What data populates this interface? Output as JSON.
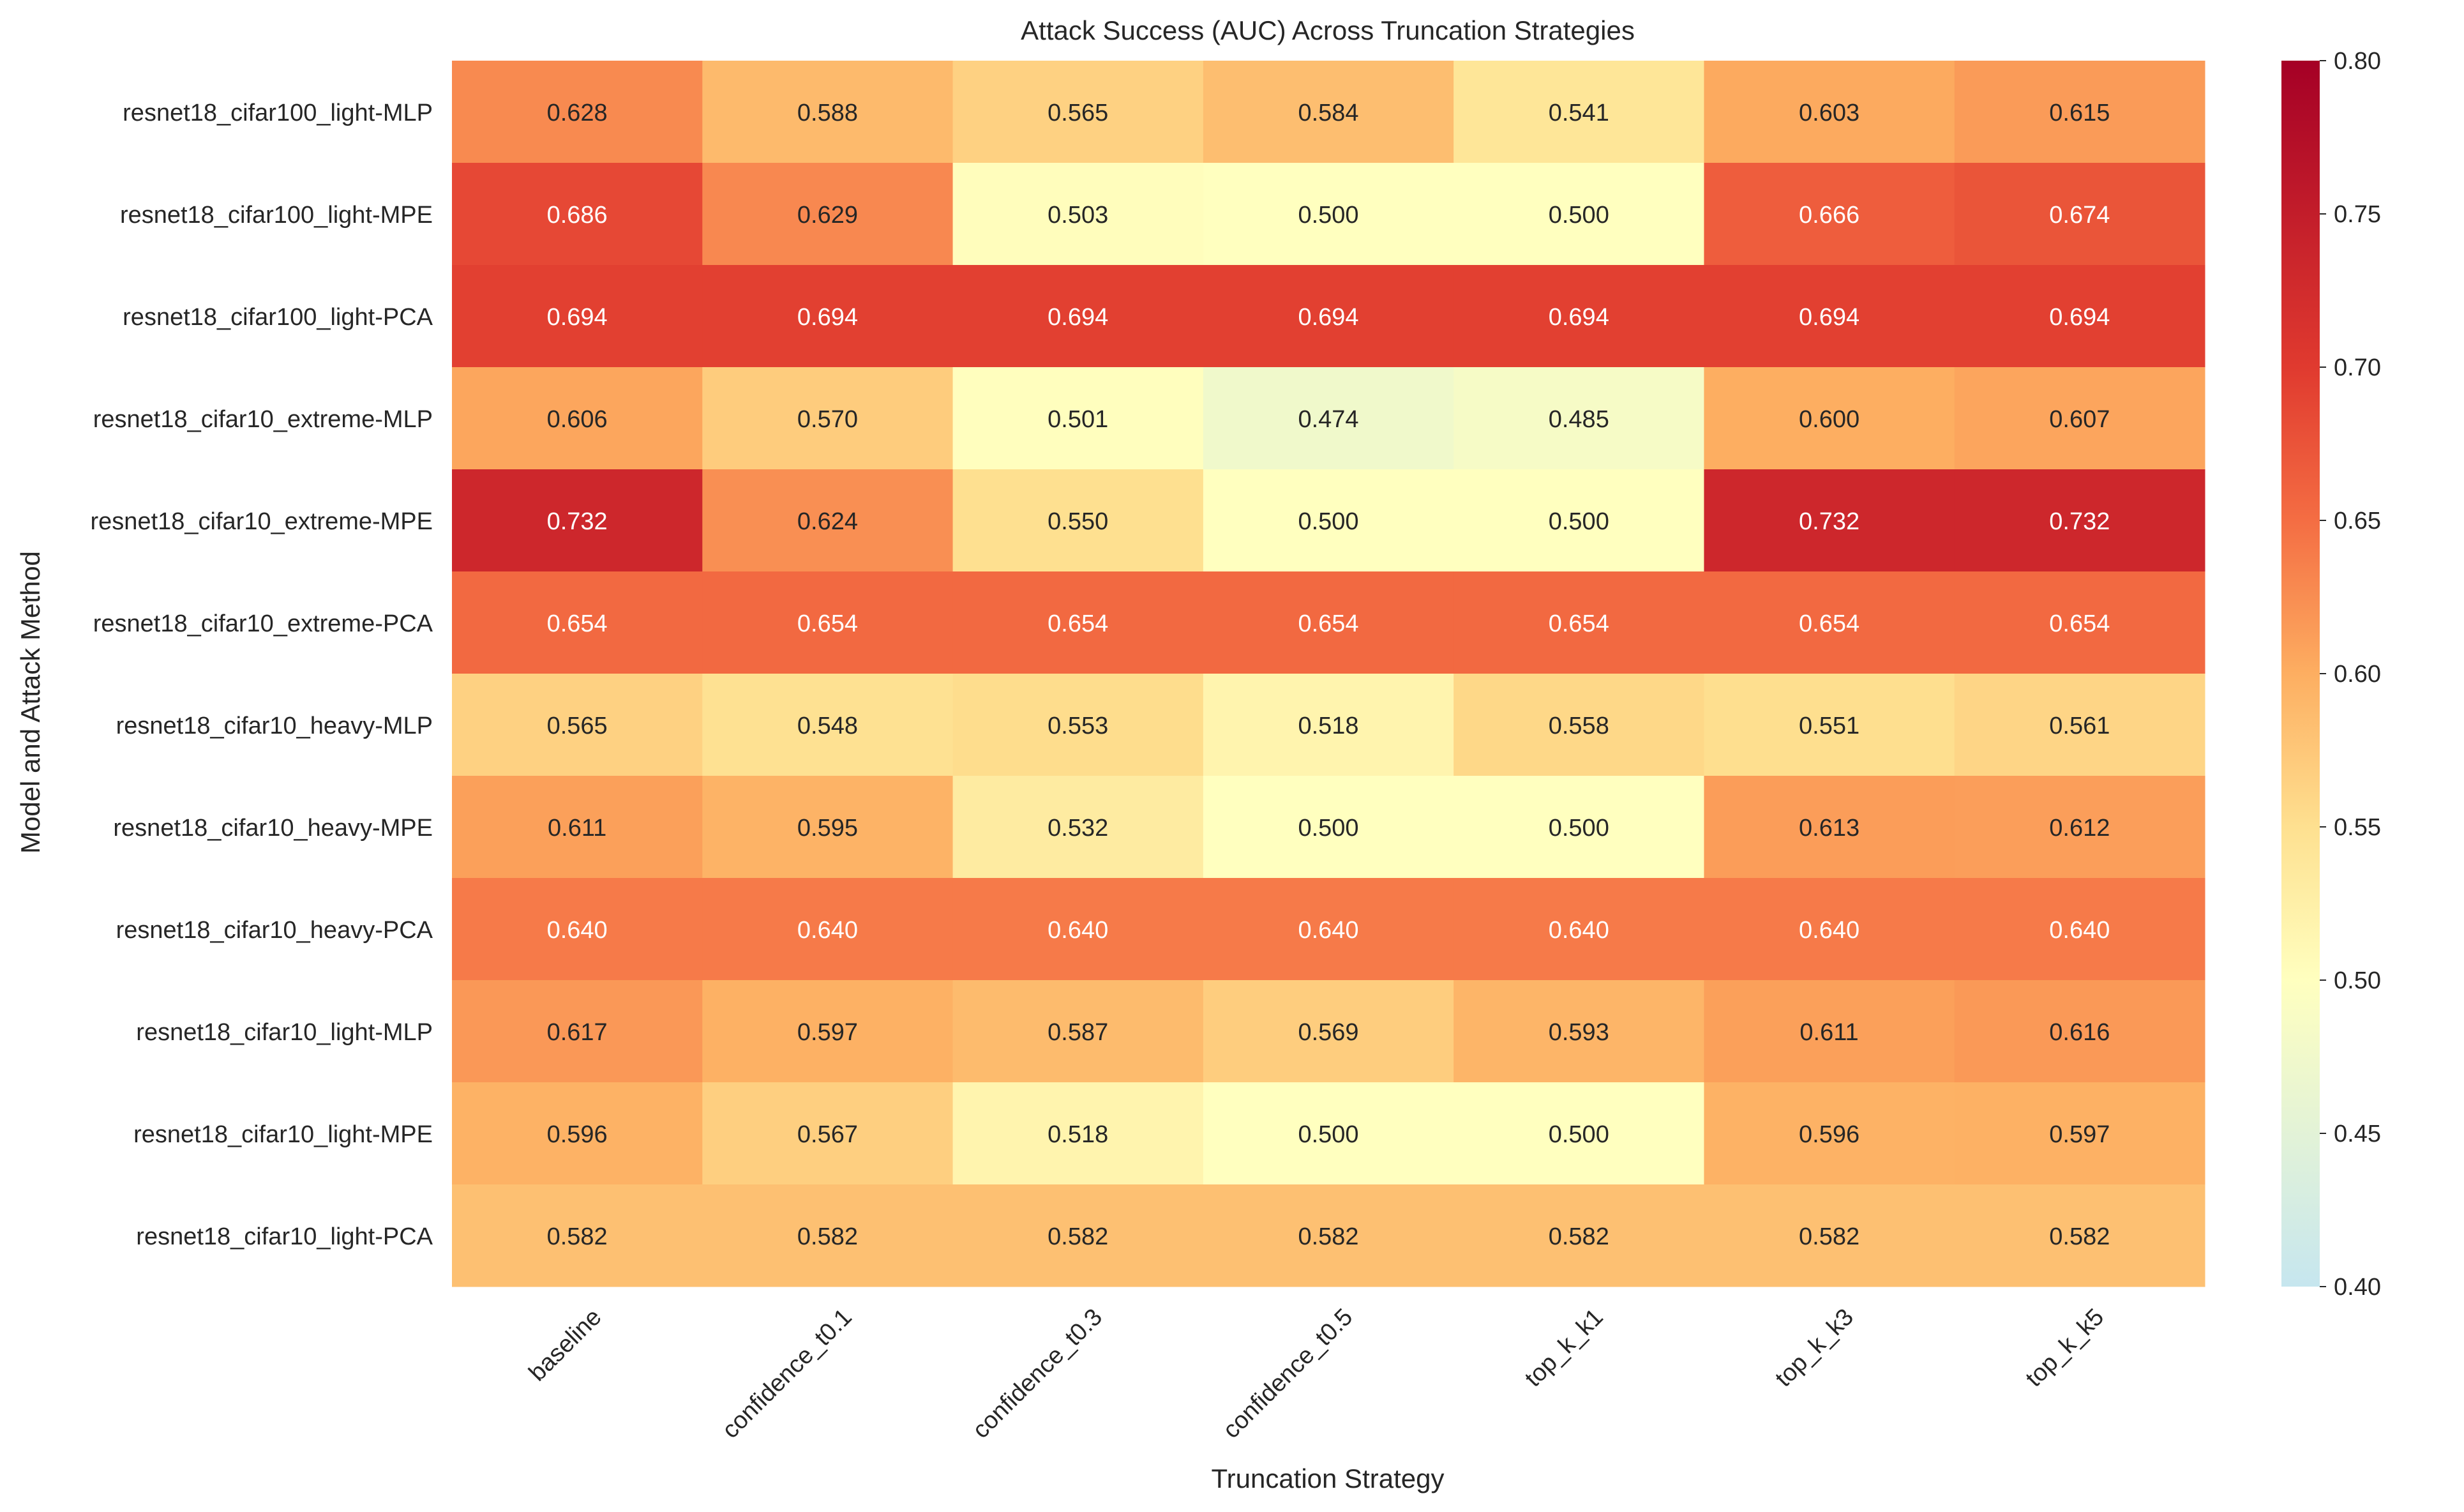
{
  "chart_data": {
    "type": "heatmap",
    "title": "Attack Success (AUC) Across Truncation Strategies",
    "xlabel": "Truncation Strategy",
    "ylabel": "Model and Attack Method",
    "x_categories": [
      "baseline",
      "confidence_t0.1",
      "confidence_t0.3",
      "confidence_t0.5",
      "top_k_k1",
      "top_k_k3",
      "top_k_k5"
    ],
    "y_categories": [
      "resnet18_cifar100_light-MLP",
      "resnet18_cifar100_light-MPE",
      "resnet18_cifar100_light-PCA",
      "resnet18_cifar10_extreme-MLP",
      "resnet18_cifar10_extreme-MPE",
      "resnet18_cifar10_extreme-PCA",
      "resnet18_cifar10_heavy-MLP",
      "resnet18_cifar10_heavy-MPE",
      "resnet18_cifar10_heavy-PCA",
      "resnet18_cifar10_light-MLP",
      "resnet18_cifar10_light-MPE",
      "resnet18_cifar10_light-PCA"
    ],
    "values": [
      [
        0.628,
        0.588,
        0.565,
        0.584,
        0.541,
        0.603,
        0.615
      ],
      [
        0.686,
        0.629,
        0.503,
        0.5,
        0.5,
        0.666,
        0.674
      ],
      [
        0.694,
        0.694,
        0.694,
        0.694,
        0.694,
        0.694,
        0.694
      ],
      [
        0.606,
        0.57,
        0.501,
        0.474,
        0.485,
        0.6,
        0.607
      ],
      [
        0.732,
        0.624,
        0.55,
        0.5,
        0.5,
        0.732,
        0.732
      ],
      [
        0.654,
        0.654,
        0.654,
        0.654,
        0.654,
        0.654,
        0.654
      ],
      [
        0.565,
        0.548,
        0.553,
        0.518,
        0.558,
        0.551,
        0.561
      ],
      [
        0.611,
        0.595,
        0.532,
        0.5,
        0.5,
        0.613,
        0.612
      ],
      [
        0.64,
        0.64,
        0.64,
        0.64,
        0.64,
        0.64,
        0.64
      ],
      [
        0.617,
        0.597,
        0.587,
        0.569,
        0.593,
        0.611,
        0.616
      ],
      [
        0.596,
        0.567,
        0.518,
        0.5,
        0.5,
        0.596,
        0.597
      ],
      [
        0.582,
        0.582,
        0.582,
        0.582,
        0.582,
        0.582,
        0.582
      ]
    ],
    "value_format": "3 decimals",
    "colorbar": {
      "vmin": 0.4,
      "vmax": 0.8,
      "ticks": [
        0.4,
        0.45,
        0.5,
        0.55,
        0.6,
        0.65,
        0.7,
        0.75,
        0.8
      ],
      "tick_labels": [
        "0.40",
        "0.45",
        "0.50",
        "0.55",
        "0.60",
        "0.65",
        "0.70",
        "0.75",
        "0.80"
      ],
      "colormap_stops": [
        [
          0.0,
          "#c6e6ef"
        ],
        [
          0.25,
          "#ffffbf"
        ],
        [
          0.375,
          "#fee090"
        ],
        [
          0.5,
          "#fdae61"
        ],
        [
          0.625,
          "#f46d43"
        ],
        [
          0.75,
          "#e03a2f"
        ],
        [
          1.0,
          "#a50026"
        ]
      ]
    },
    "grid": false,
    "legend": "colorbar-right"
  }
}
